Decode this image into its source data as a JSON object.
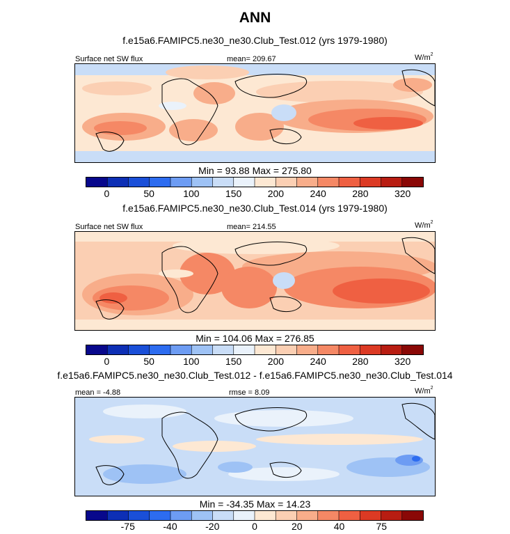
{
  "title": "ANN",
  "chart_data": [
    {
      "type": "heatmap",
      "title": "f.e15a6.FAMIPC5.ne30_ne30.Club_Test.012 (yrs 1979-1980)",
      "left_label": "Surface net SW flux",
      "center_label": "mean= 209.67",
      "units": "W/m",
      "units_sup": "2",
      "stats": "Min =  93.88 Max = 275.80",
      "colorbar_ticks": [
        "0",
        "50",
        "100",
        "150",
        "200",
        "240",
        "280",
        "320"
      ],
      "colorbar_colors": [
        "#08088c",
        "#0d2fb5",
        "#1a4fd8",
        "#2d6cf0",
        "#6d9cf3",
        "#9ec2f5",
        "#c9ddf7",
        "#eaf2fb",
        "#fde8d3",
        "#fbcfb3",
        "#f8ad8a",
        "#f58865",
        "#ef6042",
        "#dc3a24",
        "#b81d12",
        "#8a0806"
      ],
      "tick_boundaries": [
        1,
        3,
        5,
        7,
        9,
        11,
        13,
        15
      ],
      "mean": 209.67,
      "min": 93.88,
      "max": 275.8
    },
    {
      "type": "heatmap",
      "title": "f.e15a6.FAMIPC5.ne30_ne30.Club_Test.014 (yrs 1979-1980)",
      "left_label": "Surface net SW flux",
      "center_label": "mean= 214.55",
      "units": "W/m",
      "units_sup": "2",
      "stats": "Min = 104.06 Max = 276.85",
      "colorbar_ticks": [
        "0",
        "50",
        "100",
        "150",
        "200",
        "240",
        "280",
        "320"
      ],
      "colorbar_colors": [
        "#08088c",
        "#0d2fb5",
        "#1a4fd8",
        "#2d6cf0",
        "#6d9cf3",
        "#9ec2f5",
        "#c9ddf7",
        "#eaf2fb",
        "#fde8d3",
        "#fbcfb3",
        "#f8ad8a",
        "#f58865",
        "#ef6042",
        "#dc3a24",
        "#b81d12",
        "#8a0806"
      ],
      "tick_boundaries": [
        1,
        3,
        5,
        7,
        9,
        11,
        13,
        15
      ],
      "mean": 214.55,
      "min": 104.06,
      "max": 276.85
    },
    {
      "type": "heatmap",
      "title": "f.e15a6.FAMIPC5.ne30_ne30.Club_Test.012 - f.e15a6.FAMIPC5.ne30_ne30.Club_Test.014",
      "left_label": "mean =  -4.88",
      "center_label": "rmse =  8.09",
      "units": "W/m",
      "units_sup": "2",
      "stats": "Min = -34.35 Max =  14.23",
      "colorbar_ticks": [
        "-75",
        "-40",
        "-20",
        "0",
        "20",
        "40",
        "75"
      ],
      "colorbar_colors": [
        "#08088c",
        "#0d2fb5",
        "#1a4fd8",
        "#2d6cf0",
        "#6d9cf3",
        "#9ec2f5",
        "#c9ddf7",
        "#eaf2fb",
        "#fde8d3",
        "#fbcfb3",
        "#f8ad8a",
        "#f58865",
        "#ef6042",
        "#dc3a24",
        "#b81d12",
        "#8a0806"
      ],
      "tick_boundaries": [
        2,
        4,
        6,
        8,
        10,
        12,
        14
      ],
      "mean": -4.88,
      "rmse": 8.09,
      "min": -34.35,
      "max": 14.23
    }
  ]
}
